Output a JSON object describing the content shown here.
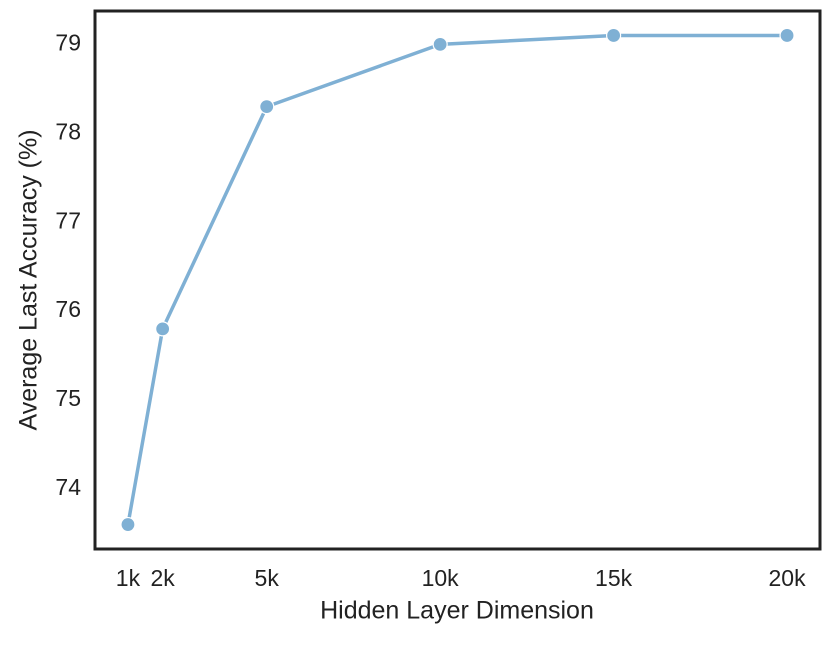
{
  "chart_data": {
    "type": "line",
    "x_label": "Hidden Layer Dimension",
    "y_label": "Average Last Accuracy (%)",
    "x": [
      1000,
      2000,
      5000,
      10000,
      15000,
      20000
    ],
    "series": [
      {
        "color": "#7fb0d4",
        "values": [
          73.6,
          75.8,
          78.3,
          79.0,
          79.1,
          79.1
        ]
      }
    ],
    "xlim": [
      50,
      20950
    ],
    "ylim": [
      73.325,
      79.375
    ],
    "xticks": [
      {
        "value": 1000,
        "label": "1k"
      },
      {
        "value": 2000,
        "label": "2k"
      },
      {
        "value": 5000,
        "label": "5k"
      },
      {
        "value": 10000,
        "label": "10k"
      },
      {
        "value": 15000,
        "label": "15k"
      },
      {
        "value": 20000,
        "label": "20k"
      }
    ],
    "yticks": [
      74,
      75,
      76,
      77,
      78,
      79
    ],
    "grid": false
  }
}
